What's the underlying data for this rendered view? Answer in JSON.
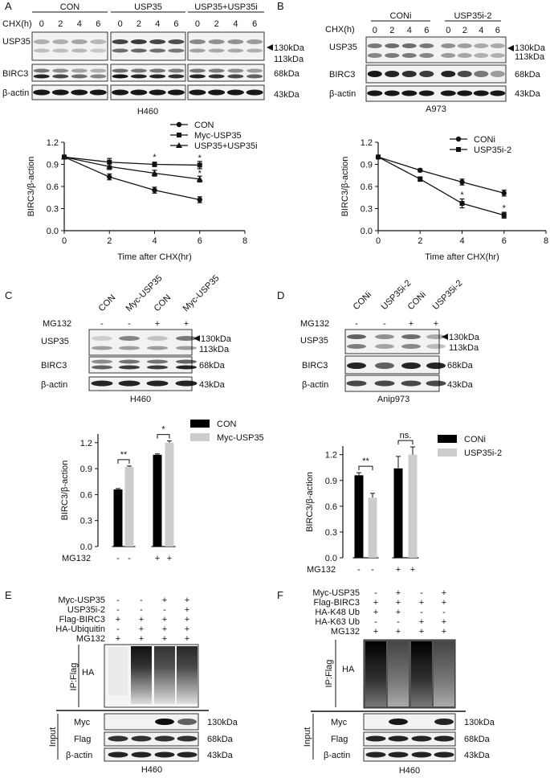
{
  "panel_letters": [
    "A",
    "B",
    "C",
    "D",
    "E",
    "F"
  ],
  "panelA": {
    "group_labels": [
      "CON",
      "USP35",
      "USP35+USP35i"
    ],
    "chx_label": "CHX(h)",
    "timepoints": [
      "0",
      "2",
      "4",
      "6",
      "0",
      "2",
      "4",
      "6",
      "0",
      "2",
      "4",
      "6"
    ],
    "row_labels": [
      "USP35",
      "BIRC3",
      "β-actin"
    ],
    "kda": [
      "130kDa",
      "113kDa",
      "68kDa",
      "43kDa"
    ],
    "cell_line": "H460"
  },
  "panelB": {
    "group_labels": [
      "CONi",
      "USP35i-2"
    ],
    "chx_label": "CHX(h)",
    "timepoints": [
      "0",
      "2",
      "4",
      "6",
      "0",
      "2",
      "4",
      "6"
    ],
    "row_labels": [
      "USP35",
      "BIRC3",
      "β-actin"
    ],
    "kda": [
      "130kDa",
      "113kDa",
      "68kDa",
      "43kDa"
    ],
    "cell_line": "A973"
  },
  "panelC": {
    "lane_labels": [
      "CON",
      "Myc-USP35",
      "CON",
      "Myc-USP35"
    ],
    "treat_label": "MG132",
    "treat_signs": [
      "-",
      "-",
      "+",
      "+"
    ],
    "row_labels": [
      "USP35",
      "BIRC3",
      "β-actin"
    ],
    "kda": [
      "130kDa",
      "113kDa",
      "68kDa",
      "43kDa"
    ],
    "cell_line": "H460"
  },
  "panelD": {
    "lane_labels": [
      "CONi",
      "USP35i-2",
      "CONi",
      "USP35i-2"
    ],
    "treat_label": "MG132",
    "treat_signs": [
      "-",
      "-",
      "+",
      "+"
    ],
    "row_labels": [
      "USP35",
      "BIRC3",
      "β-actin"
    ],
    "kda": [
      "130kDa",
      "113kDa",
      "68kDa",
      "43kDa"
    ],
    "cell_line": "Anip973"
  },
  "panelE": {
    "conditions": [
      {
        "label": "Myc-USP35",
        "signs": [
          "-",
          "-",
          "+",
          "+"
        ]
      },
      {
        "label": "USP35i-2",
        "signs": [
          "-",
          "-",
          "-",
          "+"
        ]
      },
      {
        "label": "Flag-BIRC3",
        "signs": [
          "+",
          "+",
          "+",
          "+"
        ]
      },
      {
        "label": "HA-Ubiquitin",
        "signs": [
          "-",
          "+",
          "+",
          "+"
        ]
      },
      {
        "label": "MG132",
        "signs": [
          "+",
          "+",
          "+",
          "+"
        ]
      }
    ],
    "ip_label": "IP:Flag",
    "ip_row": "HA",
    "input_label": "Input",
    "input_rows": [
      "Myc",
      "Flag",
      "β-actin"
    ],
    "kda": [
      "130kDa",
      "68kDa",
      "43kDa"
    ],
    "cell_line": "H460"
  },
  "panelF": {
    "conditions": [
      {
        "label": "Myc-USP35",
        "signs": [
          "-",
          "+",
          "-",
          "+"
        ]
      },
      {
        "label": "Flag-BIRC3",
        "signs": [
          "+",
          "+",
          "+",
          "+"
        ]
      },
      {
        "label": "HA-K48 Ub",
        "signs": [
          "+",
          "+",
          "-",
          "-"
        ]
      },
      {
        "label": "HA-K63 Ub",
        "signs": [
          "-",
          "-",
          "+",
          "+"
        ]
      },
      {
        "label": "MG132",
        "signs": [
          "+",
          "+",
          "+",
          "+"
        ]
      }
    ],
    "ip_label": "IP:Flag",
    "ip_row": "HA",
    "input_label": "Input",
    "input_rows": [
      "Myc",
      "Flag",
      "β-actin"
    ],
    "kda": [
      "130kDa",
      "68kDa",
      "43kDa"
    ],
    "cell_line": "H460"
  },
  "chart_data": [
    {
      "type": "line",
      "id": "A-line",
      "x": [
        0,
        2,
        4,
        6
      ],
      "series": [
        {
          "name": "CON",
          "marker": "circle",
          "values": [
            1.0,
            0.73,
            0.55,
            0.42
          ],
          "err": [
            0.02,
            0.04,
            0.04,
            0.04
          ]
        },
        {
          "name": "Myc-USP35",
          "marker": "square",
          "values": [
            1.0,
            0.93,
            0.9,
            0.89
          ],
          "err": [
            0.02,
            0.05,
            0.03,
            0.05
          ]
        },
        {
          "name": "USP35+USP35i",
          "marker": "triangle",
          "values": [
            1.0,
            0.87,
            0.78,
            0.7
          ],
          "err": [
            0.02,
            0.04,
            0.04,
            0.04
          ]
        }
      ],
      "annotations": [
        "*",
        "*",
        "*"
      ],
      "xlabel": "Time after CHX(hr)",
      "ylabel": "BIRC3/β-action",
      "xticks": [
        "0",
        "2",
        "4",
        "6",
        "8"
      ],
      "yticks": [
        "0.0",
        "0.3",
        "0.6",
        "0.9",
        "1.2"
      ],
      "xlim": [
        0,
        8
      ],
      "ylim": [
        0,
        1.2
      ]
    },
    {
      "type": "line",
      "id": "B-line",
      "x": [
        0,
        2,
        4,
        6
      ],
      "series": [
        {
          "name": "CONi",
          "marker": "circle",
          "values": [
            1.0,
            0.82,
            0.66,
            0.51
          ],
          "err": [
            0.02,
            0.02,
            0.04,
            0.04
          ]
        },
        {
          "name": "USP35i-2",
          "marker": "square",
          "values": [
            1.0,
            0.7,
            0.37,
            0.21
          ],
          "err": [
            0.02,
            0.03,
            0.06,
            0.04
          ]
        }
      ],
      "annotations": [
        "*",
        "*"
      ],
      "xlabel": "Time after CHX(hr)",
      "ylabel": "BIRC3/β-action",
      "xticks": [
        "0",
        "2",
        "4",
        "6",
        "8"
      ],
      "yticks": [
        "0.0",
        "0.3",
        "0.6",
        "0.9",
        "1.2"
      ],
      "xlim": [
        0,
        8
      ],
      "ylim": [
        0,
        1.2
      ]
    },
    {
      "type": "bar",
      "id": "C-bar",
      "series": [
        {
          "name": "CON",
          "color": "#000000",
          "values": [
            0.66,
            1.06
          ],
          "err": [
            0.01,
            0.01
          ]
        },
        {
          "name": "Myc-USP35",
          "color": "#cccccc",
          "values": [
            0.92,
            1.2
          ],
          "err": [
            0.01,
            0.02
          ]
        }
      ],
      "xlabel": "MG132",
      "x_signs": [
        "-",
        "-",
        "+",
        "+"
      ],
      "significance": [
        "**",
        "*"
      ],
      "ylabel": "BIRC3/β-action",
      "yticks": [
        "0.0",
        "0.3",
        "0.6",
        "0.9",
        "1.2"
      ],
      "ylim": [
        0,
        1.3
      ]
    },
    {
      "type": "bar",
      "id": "D-bar",
      "series": [
        {
          "name": "CONi",
          "color": "#000000",
          "values": [
            0.96,
            1.04
          ],
          "err": [
            0.03,
            0.14
          ]
        },
        {
          "name": "USP35i-2",
          "color": "#cccccc",
          "values": [
            0.7,
            1.2
          ],
          "err": [
            0.05,
            0.09
          ]
        }
      ],
      "xlabel": "MG132",
      "x_signs": [
        "-",
        "-",
        "+",
        "+"
      ],
      "significance": [
        "**",
        "ns."
      ],
      "ylabel": "BIRC3/β-action",
      "yticks": [
        "0.0",
        "0.3",
        "0.6",
        "0.9",
        "1.2"
      ],
      "ylim": [
        0,
        1.3
      ]
    }
  ]
}
